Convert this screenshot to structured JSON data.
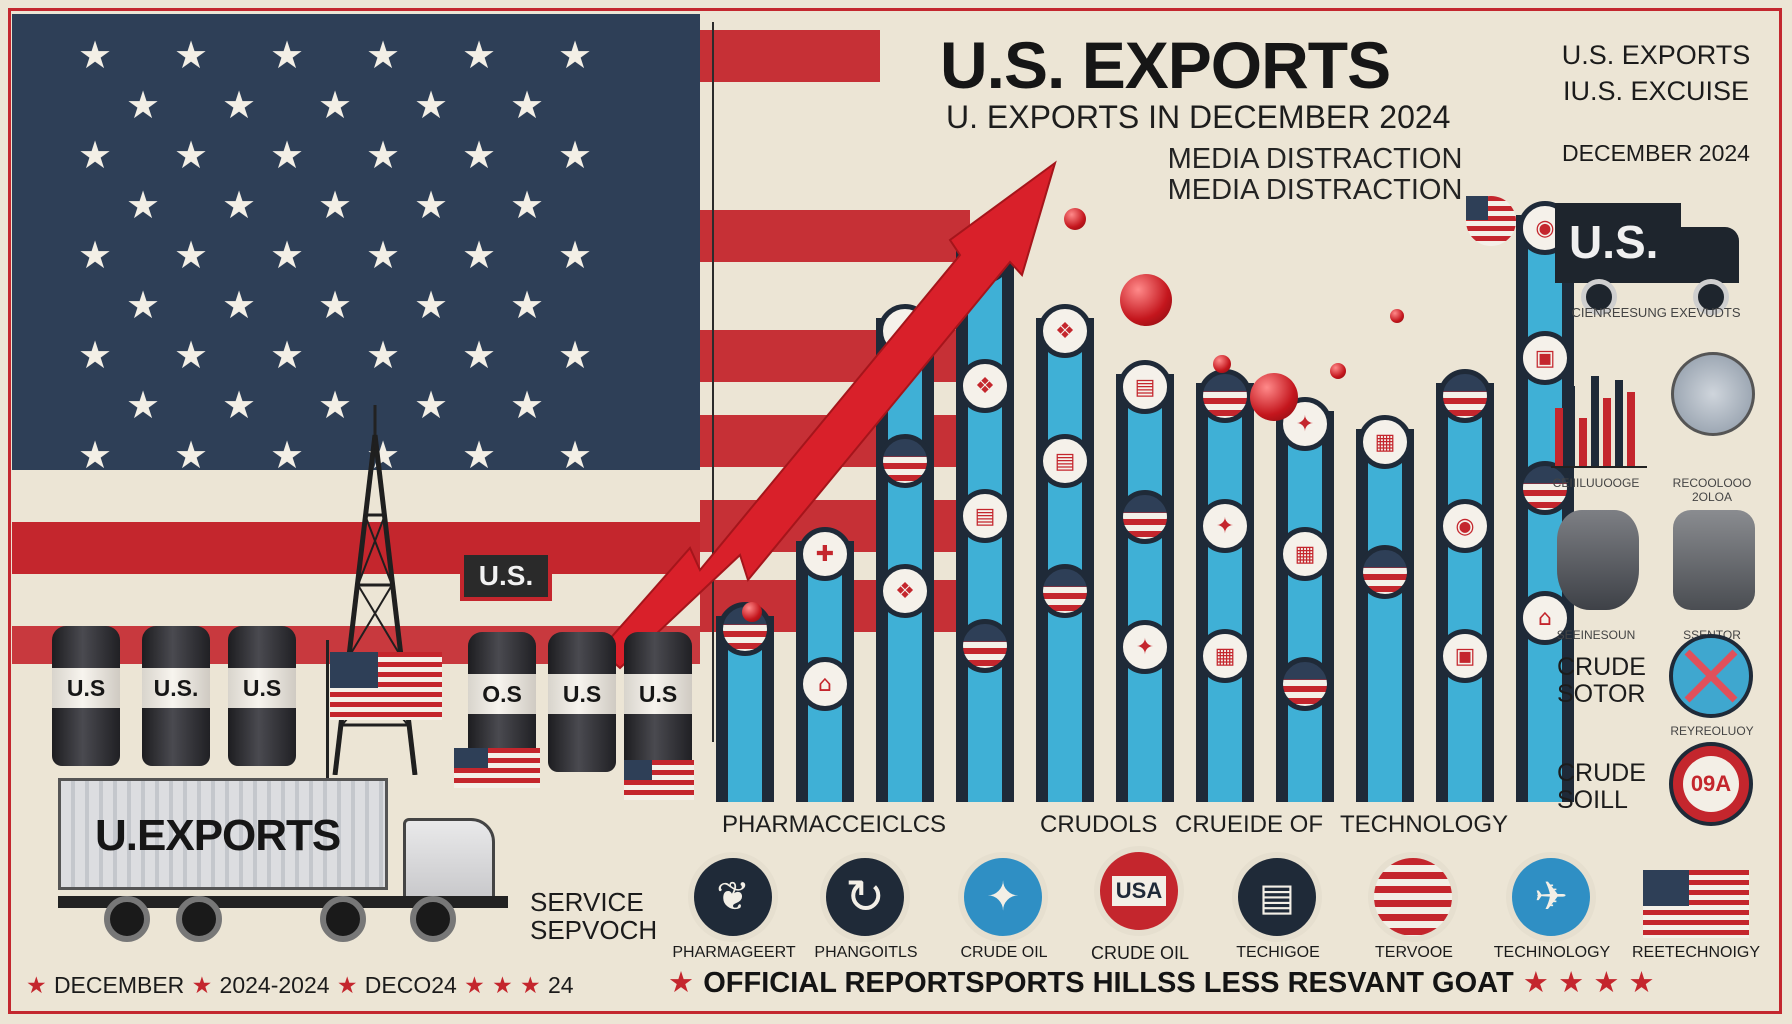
{
  "header": {
    "title": "U.S. EXPORTS",
    "subtitle": "U. EXPORTS IN DECEMBER 2024",
    "media_line_1": "MEDIA DISTRACTION",
    "media_line_2": "MEDIA DISTRACTION"
  },
  "right_panel": {
    "title_1": "U.S. EXPORTS",
    "title_2": "IU.S. EXCUISE",
    "date": "DECEMBER 2024",
    "truck_label": "U.S.",
    "caption_1": "CIENREESUNG EXEVUDTS",
    "mini_caption_1": "CEIIILUUOOGE",
    "mini_caption_2": "RECOOLOOO",
    "mini_caption_3": "2OLOA",
    "mini_caption_4": "REYREOLUOY",
    "mini_caption_5": "SEEINESOUN",
    "mini_caption_6": "SSENTOR",
    "crude_sector_1": "CRUDE",
    "crude_sector_2": "SOTOR",
    "crude_soil_1": "CRUDE",
    "crude_soil_2": "SOILL",
    "badge_text": "09A"
  },
  "scene": {
    "sign_label": "U.S.",
    "truck_label": "U.EXPORTS",
    "barrels": [
      "U.S",
      "U.S.",
      "U.S",
      "O.S",
      "U.S",
      "U.S"
    ],
    "service_line_1": "SERVICE",
    "service_line_2": "SEPVOCH"
  },
  "chart_data": {
    "type": "bar",
    "title": "",
    "xlabel": "",
    "ylabel": "",
    "category_labels": [
      "PHARMACCEICLCS",
      "CRUDOLS",
      "CRUEIDE OF",
      "TECHNOLOGY"
    ],
    "values": [
      20,
      28,
      52,
      60,
      52,
      46,
      45,
      42,
      40,
      45,
      63
    ],
    "ylim": [
      0,
      70
    ],
    "series_colors": [
      "#3fb0d6",
      "#1f2a38"
    ],
    "grid": false,
    "legend": "none"
  },
  "bottom_row": {
    "labels": [
      "PHARMAGEERT",
      "PHANGOITLS",
      "CRUDE OIL",
      "CRUDE OIL",
      "TECHIGOE",
      "TERVOOE",
      "TECHINOLOGY",
      "REETECHNOIGY"
    ],
    "circle_text": "USA"
  },
  "footer": {
    "left_date_1": "DECEMBER",
    "left_date_2": "2024-2024",
    "left_date_3": "DECO24",
    "left_tail": "24",
    "main": "OFFICIAL REPORTSPORTS HILLSS LESS RESVANT GOAT"
  },
  "colors": {
    "navy": "#2e3f57",
    "red": "#c4262d",
    "cream": "#ece5d5",
    "bar_blue": "#3fb0d6",
    "bar_dark": "#1f2a38"
  }
}
